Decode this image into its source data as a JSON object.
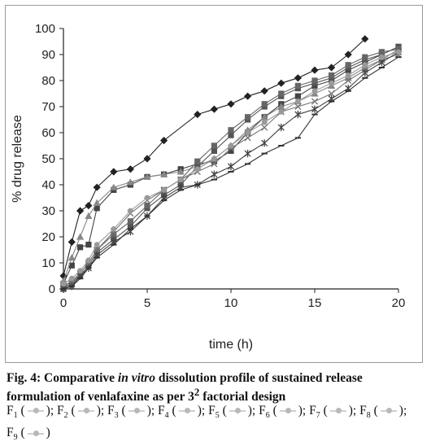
{
  "chart_data": {
    "type": "line",
    "xlabel": "time (h)",
    "ylabel": "% drug release",
    "xlim": [
      0,
      20
    ],
    "ylim": [
      0,
      100
    ],
    "xticks": [
      0,
      5,
      10,
      15,
      20
    ],
    "yticks": [
      0,
      10,
      20,
      30,
      40,
      50,
      60,
      70,
      80,
      90,
      100
    ],
    "series": [
      {
        "name": "F1",
        "marker": "diamond",
        "color": "#222222",
        "x": [
          0,
          0.5,
          1,
          1.5,
          2,
          3,
          4,
          5,
          6,
          8,
          9,
          10,
          11,
          12,
          13,
          14,
          15,
          16,
          17,
          18
        ],
        "y": [
          5,
          18,
          30,
          32,
          39,
          45,
          46,
          50,
          57,
          67,
          69,
          71,
          74,
          76,
          79,
          81,
          84,
          85,
          90,
          96
        ]
      },
      {
        "name": "F2",
        "marker": "square",
        "color": "#444444",
        "x": [
          0,
          0.5,
          1,
          1.5,
          2,
          3,
          4,
          5,
          6,
          7,
          8,
          9,
          10,
          11,
          12,
          13,
          14,
          15,
          16,
          17,
          18,
          19,
          20
        ],
        "y": [
          2,
          9,
          16,
          17,
          31,
          38,
          40,
          43,
          44,
          46,
          48,
          49,
          53,
          60,
          66,
          71,
          74,
          78,
          80,
          84,
          87,
          90,
          93
        ]
      },
      {
        "name": "F3",
        "marker": "triangle",
        "color": "#888888",
        "x": [
          0,
          0.5,
          1,
          1.5,
          2,
          3,
          4,
          5,
          6,
          7,
          8,
          9,
          10,
          11,
          12,
          13,
          14,
          15,
          16,
          17,
          18,
          19,
          20
        ],
        "y": [
          3,
          12,
          20,
          28,
          33,
          39,
          41,
          43,
          44,
          45,
          47,
          50,
          55,
          61,
          66,
          70,
          72,
          75,
          78,
          81,
          85,
          88,
          92
        ]
      },
      {
        "name": "F4",
        "marker": "square",
        "color": "#555555",
        "x": [
          0,
          0.5,
          1,
          1.5,
          2,
          3,
          4,
          5,
          6,
          7,
          8,
          9,
          10,
          11,
          12,
          13,
          14,
          15,
          16,
          17,
          18,
          19,
          20
        ],
        "y": [
          0,
          2,
          5,
          9,
          14,
          19,
          24,
          31,
          36,
          40,
          47,
          53,
          59,
          65,
          70,
          74,
          77,
          79,
          81,
          85,
          88,
          90,
          93
        ]
      },
      {
        "name": "F5",
        "marker": "square",
        "color": "#666666",
        "x": [
          0,
          0.5,
          1,
          1.5,
          2,
          3,
          4,
          5,
          6,
          7,
          8,
          9,
          10,
          11,
          12,
          13,
          14,
          15,
          16,
          17,
          18,
          19,
          20
        ],
        "y": [
          1,
          3,
          6,
          10,
          15,
          21,
          26,
          32,
          38,
          42,
          49,
          55,
          61,
          66,
          71,
          75,
          78,
          80,
          82,
          86,
          89,
          91,
          92
        ]
      },
      {
        "name": "F6",
        "marker": "x",
        "color": "#777777",
        "x": [
          0,
          0.5,
          1,
          1.5,
          2,
          3,
          4,
          5,
          6,
          7,
          8,
          9,
          10,
          11,
          12,
          13,
          14,
          15,
          16,
          17,
          18,
          19,
          20
        ],
        "y": [
          1,
          2,
          6,
          10,
          15,
          22,
          29,
          34,
          38,
          42,
          45,
          48,
          54,
          58,
          62,
          68,
          70,
          72,
          75,
          80,
          84,
          88,
          90
        ]
      },
      {
        "name": "F7",
        "marker": "star",
        "color": "#444444",
        "x": [
          0,
          0.5,
          1,
          1.5,
          2,
          3,
          4,
          5,
          6,
          7,
          8,
          9,
          10,
          11,
          12,
          13,
          14,
          15,
          16,
          17,
          18,
          19,
          20
        ],
        "y": [
          0,
          1,
          5,
          8,
          13,
          18,
          22,
          28,
          35,
          39,
          40,
          44,
          47,
          52,
          56,
          62,
          67,
          69,
          73,
          77,
          83,
          87,
          91
        ]
      },
      {
        "name": "F8",
        "marker": "dot",
        "color": "#999999",
        "x": [
          0,
          0.5,
          1,
          1.5,
          2,
          3,
          4,
          5,
          6,
          7,
          8,
          9,
          10,
          11,
          12,
          13,
          14,
          15,
          16,
          17,
          18,
          19,
          20
        ],
        "y": [
          2,
          4,
          7,
          11,
          17,
          23,
          30,
          35,
          38,
          42,
          46,
          50,
          55,
          60,
          64,
          68,
          72,
          76,
          79,
          82,
          86,
          89,
          91
        ]
      },
      {
        "name": "F9",
        "marker": "dash",
        "color": "#333333",
        "x": [
          0,
          0.5,
          1,
          1.5,
          2,
          3,
          4,
          5,
          6,
          7,
          8,
          9,
          10,
          11,
          12,
          13,
          14,
          15,
          16,
          17,
          18,
          19,
          20
        ],
        "y": [
          0,
          1,
          4,
          8,
          12,
          17,
          23,
          28,
          34,
          38,
          40,
          42,
          45,
          48,
          52,
          55,
          58,
          67,
          72,
          76,
          81,
          85,
          89
        ]
      }
    ]
  },
  "caption": {
    "fig_label": "Fig. 4: Comparative ",
    "italic": "in vitro",
    "rest": " dissolution profile of sustained release formulation of venlafaxine as per 3",
    "sup": "2",
    "tail": " factorial design"
  },
  "legend": [
    {
      "base": "F",
      "sub": "1",
      "sep": "; "
    },
    {
      "base": "F",
      "sub": "2",
      "sep": "; "
    },
    {
      "base": "F",
      "sub": "3",
      "sep": "; "
    },
    {
      "base": "F",
      "sub": "4",
      "sep": "; "
    },
    {
      "base": "F",
      "sub": "5",
      "sep": "; "
    },
    {
      "base": "F",
      "sub": "6",
      "sep": "; "
    },
    {
      "base": "F",
      "sub": "7",
      "sep": "; "
    },
    {
      "base": "F",
      "sub": "8",
      "sep": "; "
    },
    {
      "base": "F",
      "sub": "9",
      "sep": ""
    }
  ]
}
